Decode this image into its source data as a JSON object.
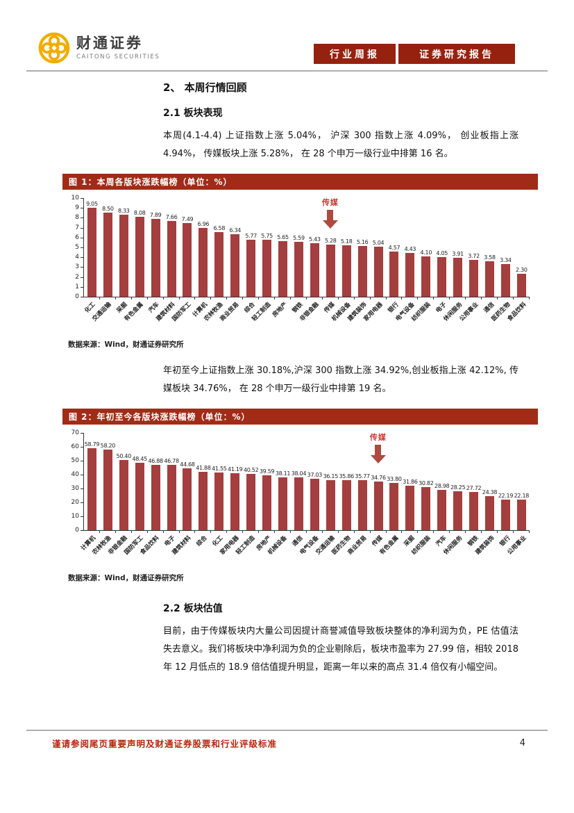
{
  "header": {
    "brand_cn": "财通证券",
    "brand_en": "CAITONG SECURITIES",
    "brand_gold": "#F0AD00",
    "badge_bg": "#96210F",
    "badges": [
      {
        "label": "行业周报"
      },
      {
        "label": "证券研究报告"
      }
    ]
  },
  "sections": {
    "review_heading": "2、 本周行情回顾",
    "performance_heading": "2.1 板块表现",
    "performance_para": "本周(4.1-4.4) 上证指数上涨 5.04%， 沪深 300 指数上涨 4.09%， 创业板指上涨 4.94%， 传媒板块上涨 5.28%， 在 28 个申万一级行业中排第 16 名。",
    "ytd_para": "年初至今上证指数上涨 30.18%,沪深 300 指数上涨 34.92%,创业板指上涨 42.12%, 传媒板块 34.76%， 在 28 个申万一级行业中排第 19 名。",
    "valuation_heading": "2.2 板块估值",
    "valuation_para": "目前，由于传媒板块内大量公司因提计商誉减值导致板块整体的净利润为负，PE 估值法失去意义。我们将板块中净利润为负的企业剔除后，板块市盈率为 27.99 倍，相较 2018 年 12 月低点的 18.9 倍估值提升明显，距离一年以来的高点 31.4 倍仅有小幅空间。"
  },
  "colors": {
    "bar": "#A53E3E",
    "figure_band_bg": "#A02C18",
    "annotation_text": "#C5382A",
    "annotation_arrow": "#AE4B41",
    "footer_text": "#B5270D"
  },
  "chart_data": [
    {
      "type": "bar",
      "title": "图 1：本周各版块涨跌幅榜（单位：%）",
      "categories": [
        "化工",
        "交通运输",
        "采掘",
        "有色金属",
        "汽车",
        "建筑材料",
        "国防军工",
        "计算机",
        "农林牧渔",
        "商业贸易",
        "综合",
        "轻工制造",
        "房地产",
        "钢铁",
        "非银金融",
        "传媒",
        "机械设备",
        "建筑装饰",
        "家用电器",
        "银行",
        "电气设备",
        "纺织服装",
        "电子",
        "休闲服务",
        "公用事业",
        "通信",
        "医药生物",
        "食品饮料"
      ],
      "values": [
        9.05,
        8.5,
        8.33,
        8.08,
        7.89,
        7.66,
        7.49,
        6.96,
        6.58,
        6.34,
        5.77,
        5.75,
        5.65,
        5.59,
        5.43,
        5.28,
        5.18,
        5.16,
        5.04,
        4.57,
        4.43,
        4.1,
        4.05,
        3.91,
        3.72,
        3.58,
        3.34,
        2.3
      ],
      "ylim": [
        0,
        10
      ],
      "ytick_step": 1,
      "grid": false,
      "legend": "none",
      "annotation": {
        "label": "传媒",
        "index": 15
      },
      "source": "数据来源：Wind，财通证券研究所"
    },
    {
      "type": "bar",
      "title": "图 2：年初至今各版块涨跌幅榜（单位：%）",
      "categories": [
        "计算机",
        "农林牧渔",
        "非银金融",
        "国防军工",
        "食品饮料",
        "电子",
        "建筑材料",
        "综合",
        "化工",
        "家用电器",
        "轻工制造",
        "房地产",
        "机械设备",
        "通信",
        "电气设备",
        "交通运输",
        "医药生物",
        "商业贸易",
        "传媒",
        "有色金属",
        "采掘",
        "纺织服装",
        "汽车",
        "休闲服务",
        "钢铁",
        "建筑装饰",
        "银行",
        "公用事业"
      ],
      "values": [
        58.79,
        58.2,
        50.4,
        48.45,
        46.88,
        46.78,
        44.68,
        41.88,
        41.55,
        41.19,
        40.52,
        39.59,
        38.11,
        38.04,
        37.03,
        36.15,
        35.86,
        35.77,
        34.76,
        33.8,
        31.86,
        30.82,
        28.98,
        28.25,
        27.72,
        24.38,
        22.19,
        22.18
      ],
      "ylim": [
        0,
        70
      ],
      "ytick_step": 10,
      "grid": false,
      "legend": "none",
      "annotation": {
        "label": "传媒",
        "index": 18
      },
      "source": "数据来源：Wind，财通证券研究所"
    }
  ],
  "footer": {
    "disclaimer": "谨请参阅尾页重要声明及财通证券股票和行业评级标准",
    "page_number": "4"
  }
}
